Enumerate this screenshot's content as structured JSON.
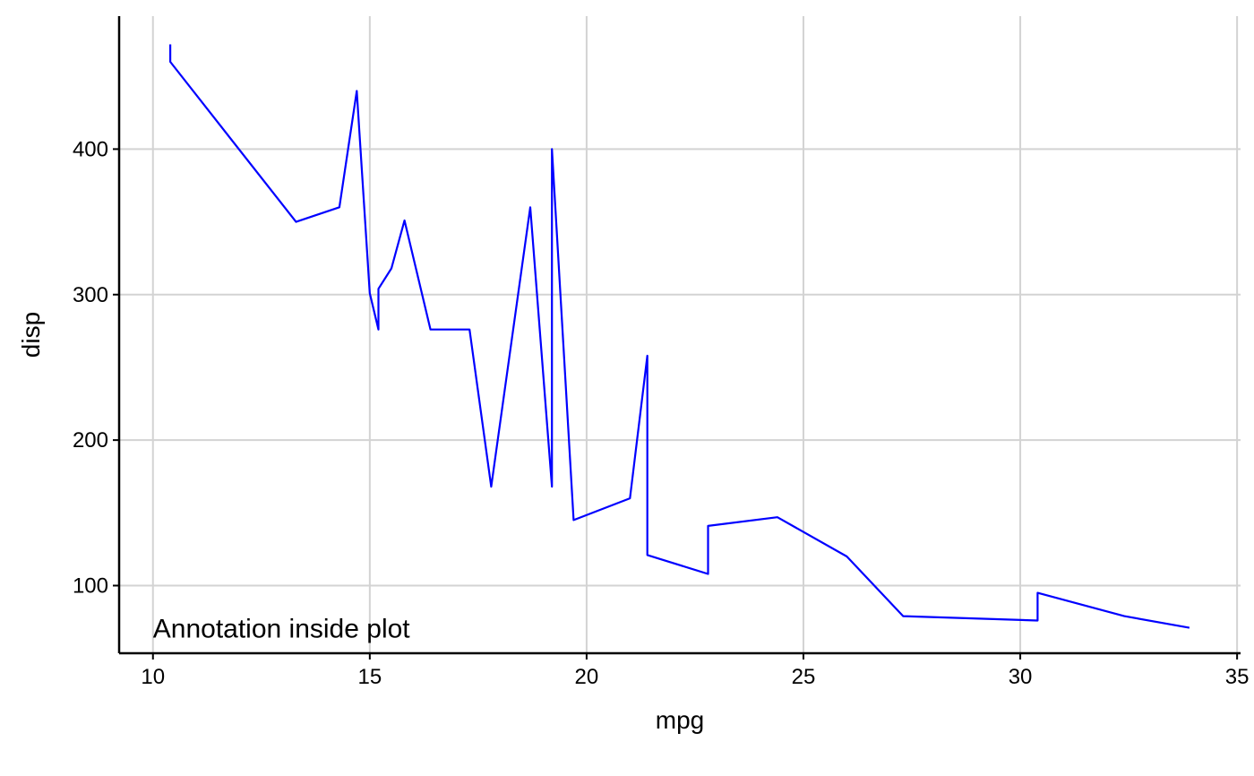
{
  "chart_data": {
    "type": "line",
    "title": "",
    "xlabel": "mpg",
    "ylabel": "disp",
    "xlim": [
      9.22,
      35.08
    ],
    "ylim": [
      53.5,
      491.4
    ],
    "x_ticks": [
      10,
      15,
      20,
      25,
      30,
      35
    ],
    "y_ticks": [
      100,
      200,
      300,
      400
    ],
    "grid": true,
    "legend": "none",
    "colors": {
      "line": "#0000FF",
      "grid": "#D3D3D3",
      "axis": "#000000"
    },
    "annotation": {
      "text": "Annotation inside plot",
      "x": 10,
      "y": 71
    },
    "series": [
      {
        "x": [
          10.4,
          10.4,
          13.3,
          14.3,
          14.7,
          15.0,
          15.2,
          15.2,
          15.5,
          15.8,
          16.4,
          17.3,
          17.8,
          18.7,
          19.2,
          19.2,
          19.7,
          21.0,
          21.4,
          21.4,
          22.8,
          22.8,
          24.4,
          26.0,
          27.3,
          30.4,
          30.4,
          32.4,
          33.9
        ],
        "y": [
          472,
          460,
          350,
          360,
          440,
          301,
          276,
          304,
          318,
          351,
          276,
          276,
          168,
          360,
          168,
          400,
          145,
          160,
          258,
          121,
          108,
          141,
          147,
          120,
          79,
          76,
          95,
          79,
          71
        ]
      }
    ]
  }
}
